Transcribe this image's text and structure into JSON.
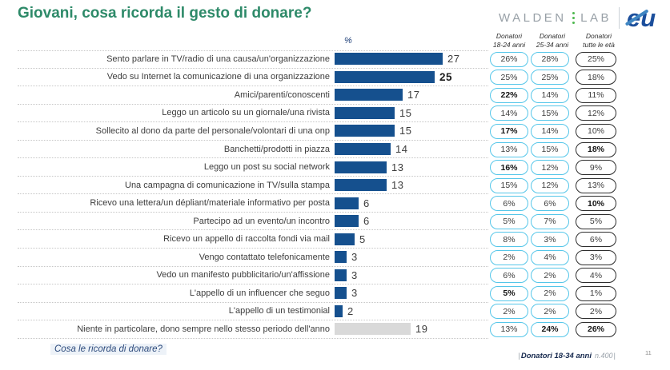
{
  "header": {
    "title": "Giovani, cosa ricorda il gesto di donare?",
    "title_color": "#2e8a69",
    "logo_walden": "WALDEN",
    "logo_lab": "LAB",
    "logo_mark": "eu"
  },
  "chart_data": {
    "type": "bar",
    "orientation": "horizontal",
    "title": "Giovani, cosa ricorda il gesto di donare?",
    "unit_label": "%",
    "xlim": [
      0,
      30
    ],
    "grid": "dotted-row-separators",
    "bar_color": "#15508e",
    "neutral_bar_color": "#d9d9d9",
    "pill_border_young": "#55c6e9",
    "pill_border_all_ages": "#2e2e2e",
    "column_headers": [
      {
        "line1": "Donatori",
        "line2": "18-24 anni"
      },
      {
        "line1": "Donatori",
        "line2": "25-34 anni"
      },
      {
        "line1": "Donatori",
        "line2": "tutte le età"
      }
    ],
    "rows": [
      {
        "label": "Sento parlare in TV/radio di una causa/un'organizzazione",
        "value": 27,
        "value_bold": false,
        "gray_bar": false,
        "donors_18_24": "26%",
        "donors_18_24_bold": false,
        "donors_25_34": "28%",
        "donors_25_34_bold": false,
        "donors_all": "25%",
        "donors_all_bold": false
      },
      {
        "label": "Vedo su Internet la comunicazione di una organizzazione",
        "value": 25,
        "value_bold": true,
        "gray_bar": false,
        "donors_18_24": "25%",
        "donors_18_24_bold": false,
        "donors_25_34": "25%",
        "donors_25_34_bold": false,
        "donors_all": "18%",
        "donors_all_bold": false
      },
      {
        "label": "Amici/parenti/conoscenti",
        "value": 17,
        "value_bold": false,
        "gray_bar": false,
        "donors_18_24": "22%",
        "donors_18_24_bold": true,
        "donors_25_34": "14%",
        "donors_25_34_bold": false,
        "donors_all": "11%",
        "donors_all_bold": false
      },
      {
        "label": "Leggo un articolo su un giornale/una rivista",
        "value": 15,
        "value_bold": false,
        "gray_bar": false,
        "donors_18_24": "14%",
        "donors_18_24_bold": false,
        "donors_25_34": "15%",
        "donors_25_34_bold": false,
        "donors_all": "12%",
        "donors_all_bold": false
      },
      {
        "label": "Sollecito al dono da parte del personale/volontari di una onp",
        "value": 15,
        "value_bold": false,
        "gray_bar": false,
        "donors_18_24": "17%",
        "donors_18_24_bold": true,
        "donors_25_34": "14%",
        "donors_25_34_bold": false,
        "donors_all": "10%",
        "donors_all_bold": false
      },
      {
        "label": "Banchetti/prodotti in piazza",
        "value": 14,
        "value_bold": false,
        "gray_bar": false,
        "donors_18_24": "13%",
        "donors_18_24_bold": false,
        "donors_25_34": "15%",
        "donors_25_34_bold": false,
        "donors_all": "18%",
        "donors_all_bold": true
      },
      {
        "label": "Leggo un post su social network",
        "value": 13,
        "value_bold": false,
        "gray_bar": false,
        "donors_18_24": "16%",
        "donors_18_24_bold": true,
        "donors_25_34": "12%",
        "donors_25_34_bold": false,
        "donors_all": "9%",
        "donors_all_bold": false
      },
      {
        "label": "Una campagna di comunicazione in TV/sulla stampa",
        "value": 13,
        "value_bold": false,
        "gray_bar": false,
        "donors_18_24": "15%",
        "donors_18_24_bold": false,
        "donors_25_34": "12%",
        "donors_25_34_bold": false,
        "donors_all": "13%",
        "donors_all_bold": false
      },
      {
        "label": "Ricevo una lettera/un dépliant/materiale informativo per posta",
        "value": 6,
        "value_bold": false,
        "gray_bar": false,
        "donors_18_24": "6%",
        "donors_18_24_bold": false,
        "donors_25_34": "6%",
        "donors_25_34_bold": false,
        "donors_all": "10%",
        "donors_all_bold": true
      },
      {
        "label": "Partecipo ad un evento/un incontro",
        "value": 6,
        "value_bold": false,
        "gray_bar": false,
        "donors_18_24": "5%",
        "donors_18_24_bold": false,
        "donors_25_34": "7%",
        "donors_25_34_bold": false,
        "donors_all": "5%",
        "donors_all_bold": false
      },
      {
        "label": "Ricevo un appello di raccolta fondi via mail",
        "value": 5,
        "value_bold": false,
        "gray_bar": false,
        "donors_18_24": "8%",
        "donors_18_24_bold": false,
        "donors_25_34": "3%",
        "donors_25_34_bold": false,
        "donors_all": "6%",
        "donors_all_bold": false
      },
      {
        "label": "Vengo contattato telefonicamente",
        "value": 3,
        "value_bold": false,
        "gray_bar": false,
        "donors_18_24": "2%",
        "donors_18_24_bold": false,
        "donors_25_34": "4%",
        "donors_25_34_bold": false,
        "donors_all": "3%",
        "donors_all_bold": false
      },
      {
        "label": "Vedo un manifesto pubblicitario/un'affissione",
        "value": 3,
        "value_bold": false,
        "gray_bar": false,
        "donors_18_24": "6%",
        "donors_18_24_bold": false,
        "donors_25_34": "2%",
        "donors_25_34_bold": false,
        "donors_all": "4%",
        "donors_all_bold": false
      },
      {
        "label": "L'appello di un influencer che seguo",
        "value": 3,
        "value_bold": false,
        "gray_bar": false,
        "donors_18_24": "5%",
        "donors_18_24_bold": true,
        "donors_25_34": "2%",
        "donors_25_34_bold": false,
        "donors_all": "1%",
        "donors_all_bold": false
      },
      {
        "label": "L'appello di un testimonial",
        "value": 2,
        "value_bold": false,
        "gray_bar": false,
        "donors_18_24": "2%",
        "donors_18_24_bold": false,
        "donors_25_34": "2%",
        "donors_25_34_bold": false,
        "donors_all": "2%",
        "donors_all_bold": false
      },
      {
        "label": "Niente in particolare, dono sempre nello stesso periodo dell'anno",
        "value": 19,
        "value_bold": false,
        "gray_bar": true,
        "donors_18_24": "13%",
        "donors_18_24_bold": false,
        "donors_25_34": "24%",
        "donors_25_34_bold": true,
        "donors_all": "26%",
        "donors_all_bold": true
      }
    ]
  },
  "footer": {
    "question": "Cosa le ricorda di donare?",
    "source_open": "|",
    "source_bold": "Donatori 18-34 anni",
    "source_note": "n.400",
    "source_close": "|",
    "page_number": "11"
  }
}
